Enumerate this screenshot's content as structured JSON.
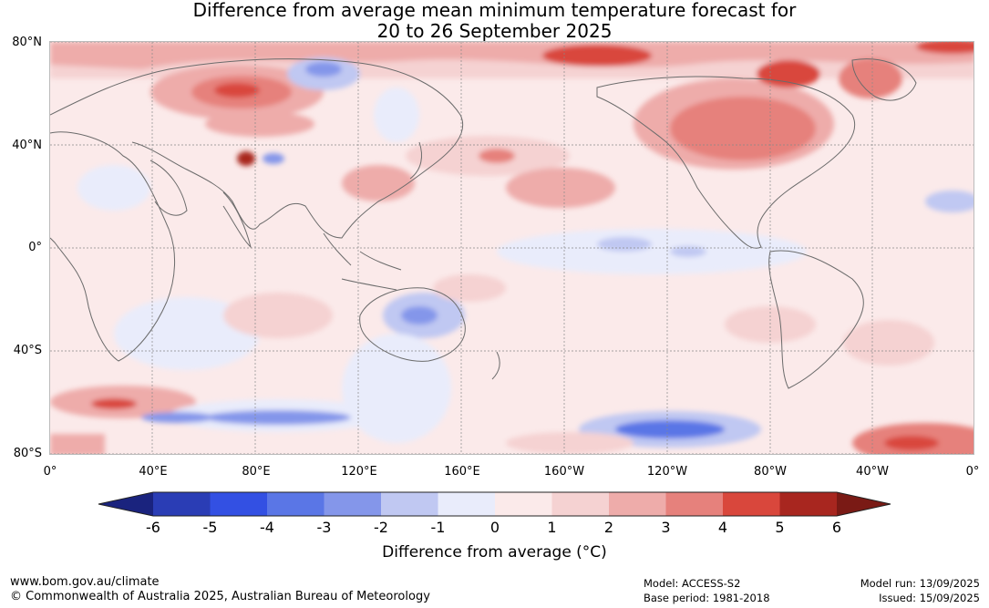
{
  "title": {
    "line1": "Difference from average mean minimum temperature forecast for",
    "line2": "20 to 26 September 2025"
  },
  "map": {
    "lat_labels": [
      "80°N",
      "40°N",
      "0°",
      "40°S",
      "80°S"
    ],
    "lon_labels": [
      "0°",
      "40°E",
      "80°E",
      "120°E",
      "160°E",
      "160°W",
      "120°W",
      "80°W",
      "40°W",
      "0°"
    ],
    "gridline_color": "#888888",
    "coastline_color": "#6b6b6b"
  },
  "colorbar": {
    "title": "Difference from average (°C)",
    "tick_labels": [
      "-6",
      "-5",
      "-4",
      "-3",
      "-2",
      "-1",
      "0",
      "1",
      "2",
      "3",
      "4",
      "5",
      "6"
    ],
    "colors": {
      "below_min": "#1a237e",
      "bins": [
        "#2a3db5",
        "#3350e3",
        "#5a76e6",
        "#8496ea",
        "#c0c8f2",
        "#e9ecfb",
        "#fbeaea",
        "#f5d2d2",
        "#eeacaa",
        "#e6817c",
        "#d9473c",
        "#a8261f"
      ],
      "above_max": "#7a1a15"
    }
  },
  "footer": {
    "website": "www.bom.gov.au/climate",
    "copyright": "© Commonwealth of Australia 2025, Australian Bureau of Meteorology",
    "model": "Model: ACCESS-S2",
    "base_period": "Base period: 1981-2018",
    "model_run": "Model run: 13/09/2025",
    "issued": "Issued: 15/09/2025"
  }
}
